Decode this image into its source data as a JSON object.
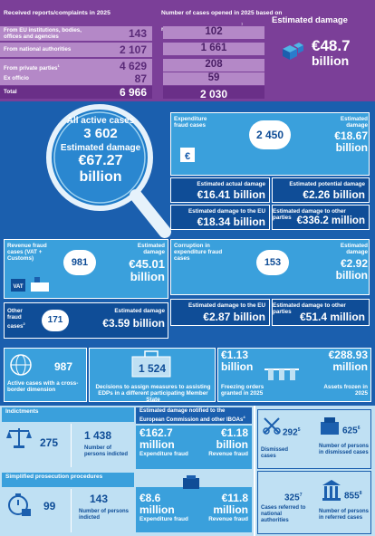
{
  "received": {
    "heading": "Received reports/complaints in 2025",
    "rows": [
      {
        "label": "From EU institutions, bodies, offices and agencies",
        "value": "143"
      },
      {
        "label": "From national authorities",
        "value": "2 107"
      },
      {
        "label": "From private parties",
        "sup": "1",
        "value": "4 629"
      },
      {
        "label": "Ex officio",
        "value": "87"
      },
      {
        "label": "Total",
        "value": "6 966"
      }
    ]
  },
  "opened": {
    "heading": "Number of cases opened in 2025 based on reports/complaints received",
    "sup": "1",
    "values": [
      "102",
      "1 661",
      "208",
      "59",
      "2 030"
    ],
    "damage_label": "Estimated damage",
    "damage_value": "€48.7",
    "damage_unit": "billion"
  },
  "all_active": {
    "title": "All active cases",
    "count": "3 602",
    "damage_label": "Estimated damage",
    "damage_value": "€67.27",
    "damage_unit": "billion"
  },
  "expenditure": {
    "label": "Expenditure fraud cases",
    "count": "2 450",
    "damage_label": "Estimated damage",
    "damage_value": "€18.67",
    "damage_unit": "billion",
    "actual_label": "Estimated actual damage",
    "actual_value": "€16.41 billion",
    "potential_label": "Estimated potential damage",
    "potential_value": "€2.26 billion",
    "eu_label": "Estimated damage to the EU",
    "eu_value": "€18.34 billion",
    "other_label": "Estimated damage to other parties",
    "other_value": "€336.2 million"
  },
  "revenue": {
    "label": "Revenue fraud cases (VAT + Customs)",
    "count": "981",
    "damage_label": "Estimated damage",
    "damage_value": "€45.01",
    "damage_unit": "billion",
    "vat_tag": "VAT"
  },
  "corruption": {
    "label": "Corruption in expenditure fraud cases",
    "count": "153",
    "damage_label": "Estimated damage",
    "damage_value": "€2.92",
    "damage_unit": "billion",
    "eu_label": "Estimated damage to the EU",
    "eu_value": "€2.87 billion",
    "other_label": "Estimated damage to other parties",
    "other_value": "€51.4 million"
  },
  "other_fraud": {
    "label": "Other fraud cases",
    "sup": "2",
    "count": "171",
    "damage_label": "Estimated damage",
    "damage_value": "€3.59 billion"
  },
  "row4": {
    "crossborder_count": "987",
    "crossborder_label": "Active cases with a cross-border dimension",
    "decisions_count": "1 524",
    "decisions_label": "Decisions to assign measures to assisting EDPs in a different participating Member State",
    "freezing_value": "€1.13",
    "freezing_unit": "billion",
    "freezing_label": "Freezing orders granted in 2025",
    "assets_value": "€288.93",
    "assets_unit": "million",
    "assets_label": "Assets frozen in 2025"
  },
  "indictments": {
    "heading": "Indictments",
    "count": "275",
    "persons": "1 438",
    "persons_label": "Number of persons indicted",
    "notified_heading": "Estimated damage notified to the European Commission and other IBOAs",
    "notified_sup": "4",
    "exp_value": "€162.7",
    "exp_unit": "million",
    "exp_label": "Expenditure fraud",
    "rev_value": "€1.18",
    "rev_unit": "billion",
    "rev_label": "Revenue fraud"
  },
  "simplified": {
    "heading": "Simplified prosecution procedures",
    "count": "99",
    "persons": "143",
    "persons_label": "Number of persons indicted",
    "exp_value": "€8.6",
    "exp_unit": "million",
    "exp_label": "Expenditure fraud",
    "rev_value": "€11.8",
    "rev_unit": "million",
    "rev_label": "Revenue fraud"
  },
  "dismissed": {
    "count": "292",
    "sup": "5",
    "label": "Dismissed cases",
    "persons": "625",
    "persons_sup": "6",
    "persons_label": "Number of persons in dismissed cases"
  },
  "referred": {
    "count": "325",
    "sup": "7",
    "label": "Cases referred to national authorities",
    "persons": "855",
    "persons_sup": "8",
    "persons_label": "Number of persons in referred cases"
  }
}
